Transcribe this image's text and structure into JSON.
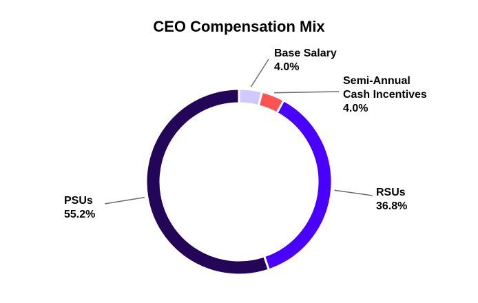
{
  "chart_data": {
    "type": "pie",
    "title": "CEO Compensation Mix",
    "donut": true,
    "categories": [
      "Base Salary",
      "Semi-Annual Cash Incentives",
      "RSUs",
      "PSUs"
    ],
    "label_lines": [
      [
        "Base Salary"
      ],
      [
        "Semi-Annual",
        "Cash Incentives"
      ],
      [
        "RSUs"
      ],
      [
        "PSUs"
      ]
    ],
    "values": [
      4.0,
      4.0,
      36.8,
      55.2
    ],
    "value_labels": [
      "4.0%",
      "4.0%",
      "36.8%",
      "55.2%"
    ],
    "colors": [
      "#d0c8ff",
      "#ff5252",
      "#4a00ff",
      "#230657"
    ],
    "legend": "none"
  }
}
